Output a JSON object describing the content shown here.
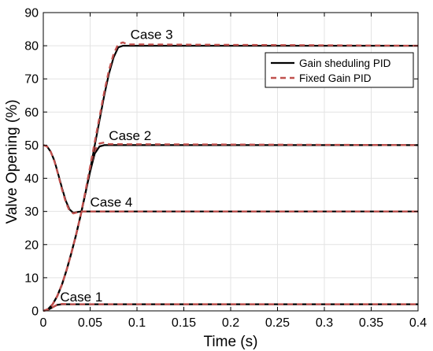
{
  "chart_data": {
    "type": "line",
    "xlabel": "Time (s)",
    "ylabel": "Valve Opening (%)",
    "xlim": [
      0,
      0.4
    ],
    "ylim": [
      0,
      90
    ],
    "xticks": [
      0,
      0.05,
      0.1,
      0.15,
      0.2,
      0.25,
      0.3,
      0.35,
      0.4
    ],
    "xtick_labels": [
      "0",
      "0.05",
      "0.1",
      "0.15",
      "0.2",
      "0.25",
      "0.3",
      "0.35",
      "0.4"
    ],
    "yticks": [
      0,
      10,
      20,
      30,
      40,
      50,
      60,
      70,
      80,
      90
    ],
    "ytick_labels": [
      "0",
      "10",
      "20",
      "30",
      "40",
      "50",
      "60",
      "70",
      "80",
      "90"
    ],
    "grid": true,
    "legend_position": "top-right",
    "series": [
      {
        "name": "Gain sheduling PID",
        "color": "#000000",
        "style": "solid"
      },
      {
        "name": "Fixed Gain PID",
        "color": "#c0504d",
        "style": "dashed"
      }
    ],
    "cases": [
      {
        "label": "Case 1",
        "gain_scheduling": [
          [
            0,
            0
          ],
          [
            0.005,
            0.3
          ],
          [
            0.01,
            1.1
          ],
          [
            0.015,
            1.8
          ],
          [
            0.02,
            2.0
          ],
          [
            0.4,
            2.0
          ]
        ],
        "fixed_gain": [
          [
            0,
            0
          ],
          [
            0.005,
            0.3
          ],
          [
            0.01,
            1.1
          ],
          [
            0.015,
            1.9
          ],
          [
            0.02,
            2.1
          ],
          [
            0.03,
            2.0
          ],
          [
            0.4,
            2.0
          ]
        ]
      },
      {
        "label": "Case 2",
        "gain_scheduling": [
          [
            0,
            0
          ],
          [
            0.005,
            0.5
          ],
          [
            0.01,
            2
          ],
          [
            0.015,
            4.5
          ],
          [
            0.02,
            8
          ],
          [
            0.025,
            12.5
          ],
          [
            0.03,
            17.5
          ],
          [
            0.035,
            23
          ],
          [
            0.04,
            29
          ],
          [
            0.045,
            35.5
          ],
          [
            0.05,
            42
          ],
          [
            0.055,
            47.5
          ],
          [
            0.06,
            49.6
          ],
          [
            0.065,
            50
          ],
          [
            0.4,
            50
          ]
        ],
        "fixed_gain": [
          [
            0,
            0
          ],
          [
            0.005,
            0.5
          ],
          [
            0.01,
            2
          ],
          [
            0.015,
            4.5
          ],
          [
            0.02,
            8
          ],
          [
            0.025,
            12.5
          ],
          [
            0.03,
            17.5
          ],
          [
            0.035,
            23
          ],
          [
            0.04,
            29
          ],
          [
            0.045,
            36
          ],
          [
            0.05,
            43
          ],
          [
            0.055,
            48.5
          ],
          [
            0.06,
            50.5
          ],
          [
            0.065,
            50.8
          ],
          [
            0.07,
            50.3
          ],
          [
            0.4,
            50
          ]
        ]
      },
      {
        "label": "Case 3",
        "gain_scheduling": [
          [
            0,
            0
          ],
          [
            0.005,
            0.5
          ],
          [
            0.01,
            2
          ],
          [
            0.015,
            4.5
          ],
          [
            0.02,
            8
          ],
          [
            0.025,
            12.5
          ],
          [
            0.03,
            17.5
          ],
          [
            0.035,
            23
          ],
          [
            0.04,
            29
          ],
          [
            0.045,
            35.5
          ],
          [
            0.05,
            42.5
          ],
          [
            0.055,
            50
          ],
          [
            0.06,
            57.5
          ],
          [
            0.065,
            65
          ],
          [
            0.07,
            71.5
          ],
          [
            0.075,
            76.5
          ],
          [
            0.08,
            79.5
          ],
          [
            0.085,
            80
          ],
          [
            0.4,
            80
          ]
        ],
        "fixed_gain": [
          [
            0,
            0
          ],
          [
            0.005,
            0.5
          ],
          [
            0.01,
            2
          ],
          [
            0.015,
            4.5
          ],
          [
            0.02,
            8
          ],
          [
            0.025,
            12.5
          ],
          [
            0.03,
            17.5
          ],
          [
            0.035,
            23
          ],
          [
            0.04,
            29
          ],
          [
            0.045,
            36
          ],
          [
            0.05,
            43.5
          ],
          [
            0.055,
            51
          ],
          [
            0.06,
            58.5
          ],
          [
            0.065,
            66
          ],
          [
            0.07,
            72.5
          ],
          [
            0.075,
            77.5
          ],
          [
            0.08,
            80.5
          ],
          [
            0.085,
            81
          ],
          [
            0.09,
            80.4
          ],
          [
            0.4,
            80
          ]
        ]
      },
      {
        "label": "Case 4",
        "gain_scheduling": [
          [
            0,
            50
          ],
          [
            0.004,
            49.6
          ],
          [
            0.008,
            48
          ],
          [
            0.012,
            45.2
          ],
          [
            0.016,
            41.2
          ],
          [
            0.02,
            37
          ],
          [
            0.024,
            33.2
          ],
          [
            0.028,
            30.6
          ],
          [
            0.032,
            29.6
          ],
          [
            0.036,
            29.8
          ],
          [
            0.04,
            30
          ],
          [
            0.4,
            30
          ]
        ],
        "fixed_gain": [
          [
            0,
            50
          ],
          [
            0.004,
            49.6
          ],
          [
            0.008,
            48
          ],
          [
            0.012,
            45
          ],
          [
            0.016,
            41
          ],
          [
            0.02,
            36.6
          ],
          [
            0.024,
            32.8
          ],
          [
            0.028,
            30.2
          ],
          [
            0.032,
            29.4
          ],
          [
            0.036,
            29.7
          ],
          [
            0.04,
            30
          ],
          [
            0.4,
            30
          ]
        ]
      }
    ],
    "annotations": [
      {
        "text": "Case 1",
        "x": 0.018,
        "y": 2.8
      },
      {
        "text": "Case 2",
        "x": 0.07,
        "y": 51.5
      },
      {
        "text": "Case 3",
        "x": 0.093,
        "y": 82
      },
      {
        "text": "Case 4",
        "x": 0.05,
        "y": 31.5
      }
    ]
  }
}
